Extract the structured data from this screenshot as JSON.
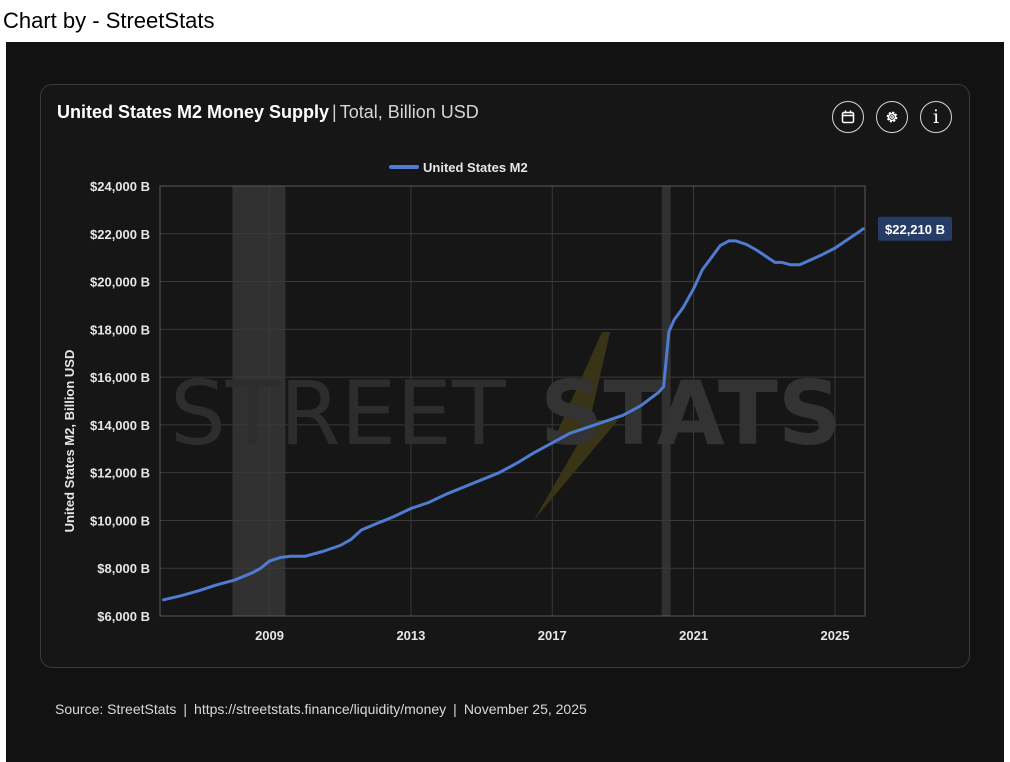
{
  "caption": "Chart by - StreetStats",
  "card": {
    "title_main": "United States M2 Money Supply",
    "title_sep": "|",
    "title_sub": "Total, Billion USD",
    "buttons": [
      "calendar-icon",
      "gear-icon",
      "info-icon"
    ],
    "info_glyph": "i"
  },
  "watermark": {
    "light": "STREET",
    "bold": "STATS"
  },
  "source": {
    "label": "Source:",
    "name": "StreetStats",
    "url": "https://streetstats.finance/liquidity/money",
    "date": "November 25, 2025",
    "sep": "|"
  },
  "colors": {
    "line": "#4f7bd1",
    "background": "#121212",
    "grid": "#3a3a3a",
    "recession": "#3b3b3b",
    "badge": "#263c66"
  },
  "chart_data": {
    "type": "line",
    "title": "United States M2 Money Supply | Total, Billion USD",
    "ylabel": "United States M2, Billion USD",
    "xlabel": "",
    "legend": [
      "United States M2"
    ],
    "legend_position": "top-center",
    "xlim": [
      2005.9,
      2025.85
    ],
    "ylim": [
      6000,
      24000
    ],
    "xticks": [
      2009,
      2013,
      2017,
      2021,
      2025
    ],
    "yticks": [
      6000,
      8000,
      10000,
      12000,
      14000,
      16000,
      18000,
      20000,
      22000,
      24000
    ],
    "ytick_labels": [
      "$6,000 B",
      "$8,000 B",
      "$10,000 B",
      "$12,000 B",
      "$14,000 B",
      "$16,000 B",
      "$18,000 B",
      "$20,000 B",
      "$22,000 B",
      "$24,000 B"
    ],
    "grid": true,
    "recession_shading": [
      [
        2007.95,
        2009.45
      ],
      [
        2020.1,
        2020.35
      ]
    ],
    "last_value_label": "$22,210 B",
    "series": [
      {
        "name": "United States M2",
        "x": [
          2006.0,
          2006.5,
          2007.0,
          2007.5,
          2008.0,
          2008.5,
          2008.75,
          2009.0,
          2009.3,
          2009.6,
          2010.0,
          2010.5,
          2011.0,
          2011.3,
          2011.6,
          2012.0,
          2012.5,
          2013.0,
          2013.5,
          2014.0,
          2014.5,
          2015.0,
          2015.5,
          2016.0,
          2016.5,
          2017.0,
          2017.5,
          2018.0,
          2018.5,
          2019.0,
          2019.5,
          2020.0,
          2020.15,
          2020.3,
          2020.45,
          2020.7,
          2021.0,
          2021.25,
          2021.5,
          2021.75,
          2022.0,
          2022.2,
          2022.5,
          2022.8,
          2023.0,
          2023.3,
          2023.5,
          2023.75,
          2024.0,
          2024.3,
          2024.6,
          2025.0,
          2025.3,
          2025.6,
          2025.8
        ],
        "values": [
          6680,
          6850,
          7060,
          7300,
          7500,
          7800,
          8000,
          8300,
          8450,
          8500,
          8500,
          8700,
          8950,
          9200,
          9600,
          9850,
          10150,
          10500,
          10750,
          11100,
          11400,
          11700,
          12000,
          12400,
          12850,
          13250,
          13650,
          13900,
          14150,
          14400,
          14800,
          15350,
          15600,
          17900,
          18400,
          18900,
          19700,
          20500,
          21000,
          21500,
          21700,
          21700,
          21550,
          21300,
          21100,
          20800,
          20800,
          20700,
          20700,
          20900,
          21100,
          21400,
          21700,
          22000,
          22210
        ]
      }
    ]
  }
}
